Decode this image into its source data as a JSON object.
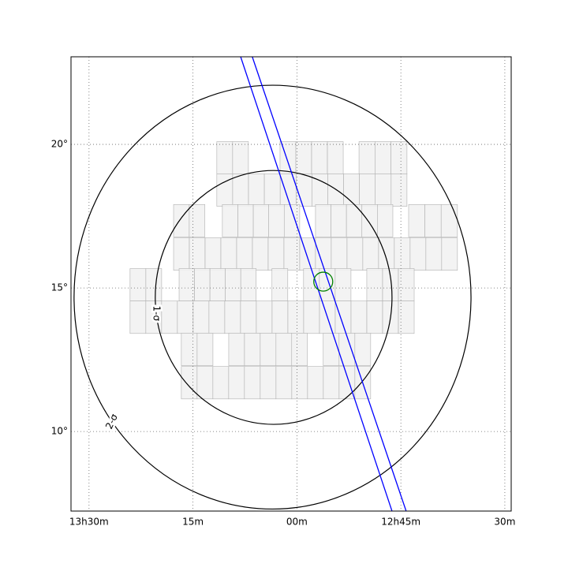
{
  "chart_data": {
    "type": "skymap",
    "xlim": [
      203.15,
      187.27
    ],
    "ylim": [
      7.23,
      23.05
    ],
    "xticks": [
      {
        "value": 202.5,
        "label": "13h30m"
      },
      {
        "value": 198.75,
        "label": "15m"
      },
      {
        "value": 195,
        "label": "00m"
      },
      {
        "value": 191.25,
        "label": "12h45m"
      },
      {
        "value": 187.5,
        "label": "30m"
      }
    ],
    "yticks": [
      {
        "value": 10,
        "label": "10°"
      },
      {
        "value": 15,
        "label": "15°"
      },
      {
        "value": 20,
        "label": "20°"
      }
    ],
    "grid": true,
    "tile_size": [
      0.57,
      1.13
    ],
    "tile_color": "#f2f2f2",
    "tiles": [
      {
        "dec": 19.53,
        "spans": [
          [
            197.89,
            196.75
          ],
          [
            195.61,
            193.33
          ],
          [
            192.76,
            191.03
          ]
        ]
      },
      {
        "dec": 18.41,
        "spans": [
          [
            197.89,
            191.03
          ]
        ]
      },
      {
        "dec": 17.34,
        "spans": [
          [
            199.45,
            198.32
          ],
          [
            197.69,
            194.9
          ],
          [
            194.33,
            191.54
          ],
          [
            190.97,
            189.21
          ]
        ]
      },
      {
        "dec": 16.18,
        "spans": [
          [
            199.45,
            189.21
          ]
        ]
      },
      {
        "dec": 15.11,
        "spans": [
          [
            201.02,
            199.88
          ],
          [
            199.25,
            196.47
          ],
          [
            195.9,
            195.33
          ],
          [
            194.76,
            193.05
          ],
          [
            192.48,
            190.77
          ]
        ]
      },
      {
        "dec": 13.98,
        "spans": [
          [
            201.02,
            190.77
          ]
        ]
      },
      {
        "dec": 12.86,
        "spans": [
          [
            199.17,
            198.03
          ],
          [
            197.46,
            194.62
          ],
          [
            194.05,
            192.34
          ]
        ]
      },
      {
        "dec": 11.7,
        "spans": [
          [
            199.17,
            192.34
          ]
        ]
      }
    ],
    "contours": [
      {
        "label": "1-σ",
        "center_ra": 195.84,
        "center_dec": 14.67,
        "ra_radius": 4.27,
        "dec_radius": 4.42,
        "color": "#000000"
      },
      {
        "label": "2-σ",
        "center_ra": 195.88,
        "center_dec": 14.68,
        "ra_radius": 7.16,
        "dec_radius": 7.38,
        "color": "#000000"
      }
    ],
    "lines": [
      {
        "ra": [
          197.03,
          191.57
        ],
        "dec": [
          23.05,
          7.23
        ],
        "color": "#0000ff"
      },
      {
        "ra": [
          196.61,
          191.06
        ],
        "dec": [
          23.05,
          7.23
        ],
        "color": "#0000ff"
      }
    ],
    "marker": {
      "ra": 194.05,
      "dec": 15.22,
      "radius": 0.33,
      "color": "#008000"
    }
  }
}
